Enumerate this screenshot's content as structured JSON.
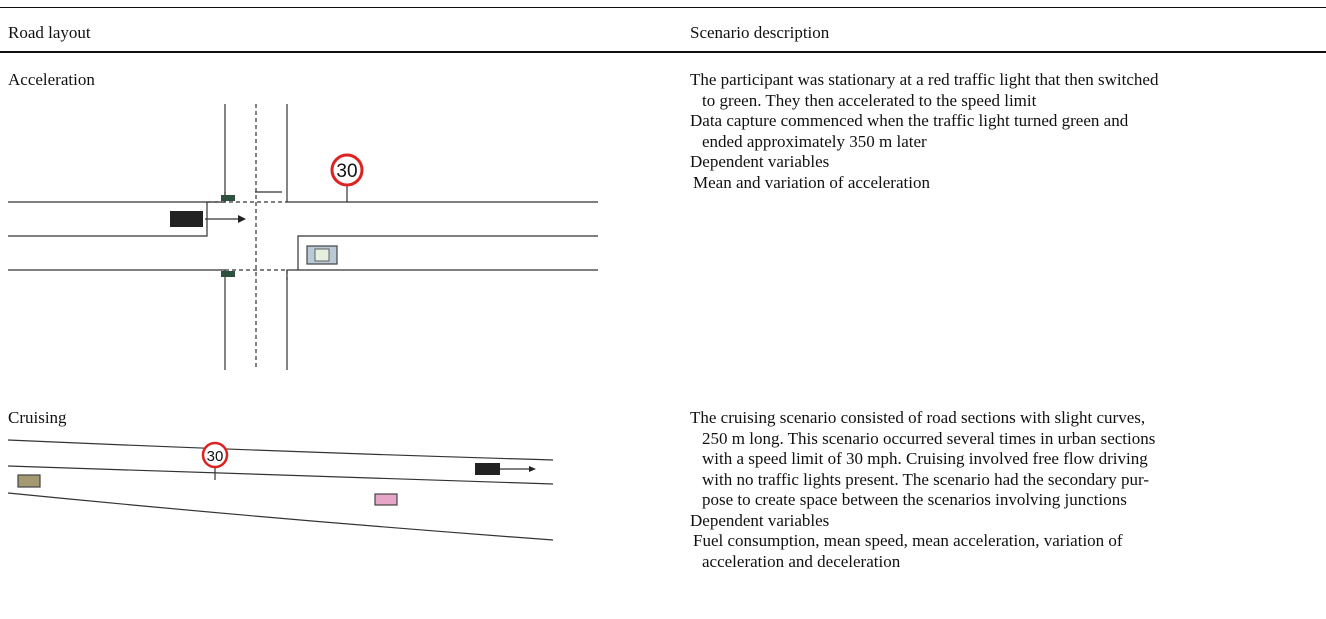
{
  "table": {
    "header": [
      "Road layout",
      "Scenario description"
    ],
    "rows": [
      {
        "label": "Acceleration",
        "sign": "30",
        "description": [
          [
            "The participant was stationary at a red traffic light that then switched",
            "to green. They then accelerated to the speed limit"
          ],
          [
            "Data capture commenced when the traffic light turned green and",
            "ended approximately 350 m later"
          ],
          [
            "Dependent variables"
          ],
          [
            "Mean and variation of acceleration"
          ]
        ]
      },
      {
        "label": "Cruising",
        "sign": "30",
        "description": [
          [
            "The cruising scenario consisted of road sections with slight curves,",
            "250 m long. This scenario occurred several times in urban sections",
            "with a speed limit of 30 mph. Cruising involved free flow driving",
            "with no traffic lights present. The scenario had the secondary pur-",
            "pose to create space between the scenarios involving junctions"
          ],
          [
            "Dependent variables"
          ],
          [
            "Fuel consumption, mean speed, mean acceleration, variation of",
            "acceleration and deceleration"
          ]
        ]
      }
    ]
  }
}
